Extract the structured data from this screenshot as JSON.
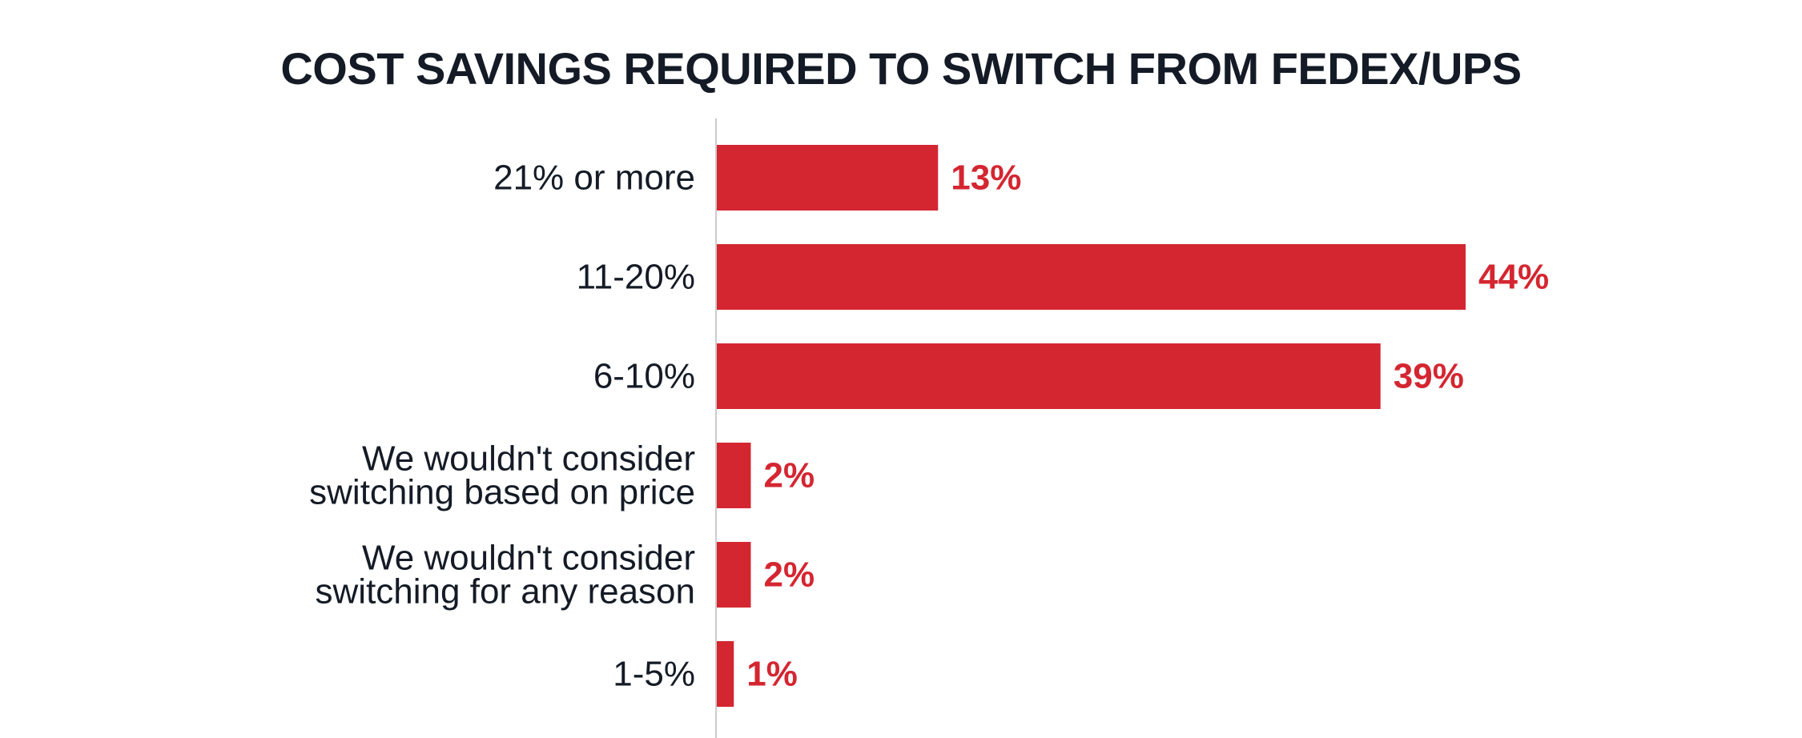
{
  "colors": {
    "bar": "#d42631",
    "value_label": "#d42631",
    "text": "#141b26",
    "axis": "#cccccc"
  },
  "chart_data": {
    "type": "bar",
    "orientation": "horizontal",
    "title": "COST SAVINGS REQUIRED TO SWITCH FROM FEDEX/UPS",
    "xlabel": "",
    "ylabel": "",
    "unit": "%",
    "xlim": [
      0,
      100
    ],
    "grid": false,
    "categories": [
      [
        "21% or more"
      ],
      [
        "11-20%"
      ],
      [
        "6-10%"
      ],
      [
        "We wouldn't consider",
        "switching based on price"
      ],
      [
        "We wouldn't consider",
        "switching for any reason"
      ],
      [
        "1-5%"
      ]
    ],
    "values": [
      13,
      44,
      39,
      2,
      2,
      1
    ],
    "value_labels": [
      "13%",
      "44%",
      "39%",
      "2%",
      "2%",
      "1%"
    ]
  }
}
